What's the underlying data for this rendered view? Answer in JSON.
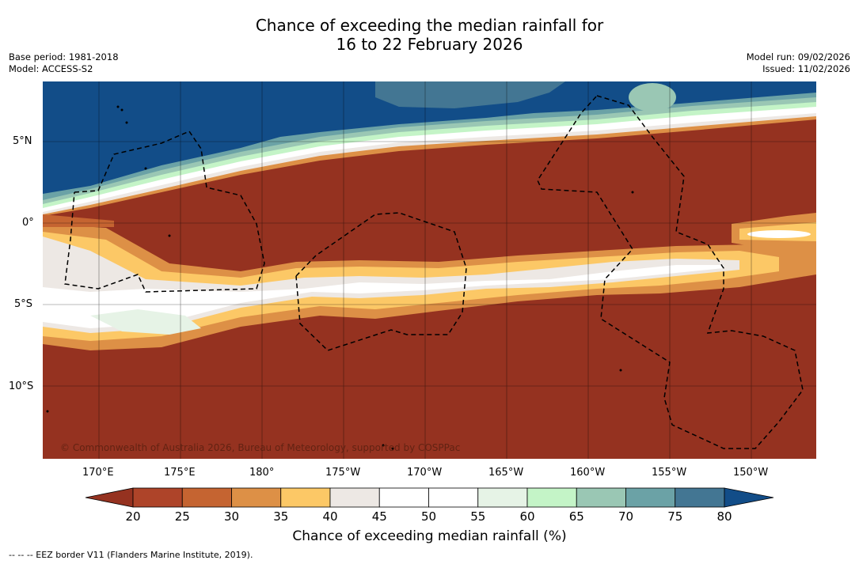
{
  "title": {
    "line1": "Chance of exceeding the median rainfall for",
    "line2": "16 to 22 February 2026"
  },
  "meta_left": {
    "base_period": "Base period: 1981-2018",
    "model": "Model: ACCESS-S2"
  },
  "meta_right": {
    "model_run": "Model run: 09/02/2026",
    "issued": "Issued: 11/02/2026"
  },
  "map": {
    "lon_labels": [
      "170°E",
      "175°E",
      "180°",
      "175°W",
      "170°W",
      "165°W",
      "160°W",
      "155°W",
      "150°W"
    ],
    "lat_labels": [
      "5°N",
      "0°",
      "5°S",
      "10°S"
    ],
    "copyright": "© Commonwealth of Australia 2026, Bureau of Meteorology, supported by COSPPac",
    "region_colors": {
      "ocean_wet": "#124d88",
      "dry": "#953220"
    }
  },
  "colorbar": {
    "ticks": [
      "20",
      "25",
      "30",
      "35",
      "40",
      "45",
      "50",
      "55",
      "60",
      "65",
      "70",
      "75",
      "80"
    ],
    "colors": [
      "#953220",
      "#ae4429",
      "#c56431",
      "#dd9046",
      "#fcc866",
      "#ede8e4",
      "#ffffff",
      "#ffffff",
      "#e6f3e6",
      "#c4f4c7",
      "#9ac7b4",
      "#6ba2a6",
      "#437693",
      "#124d88"
    ],
    "label": "Chance of exceeding median rainfall (%)"
  },
  "footnote": "-- -- -- EEZ border V11 (Flanders Marine Institute, 2019)."
}
